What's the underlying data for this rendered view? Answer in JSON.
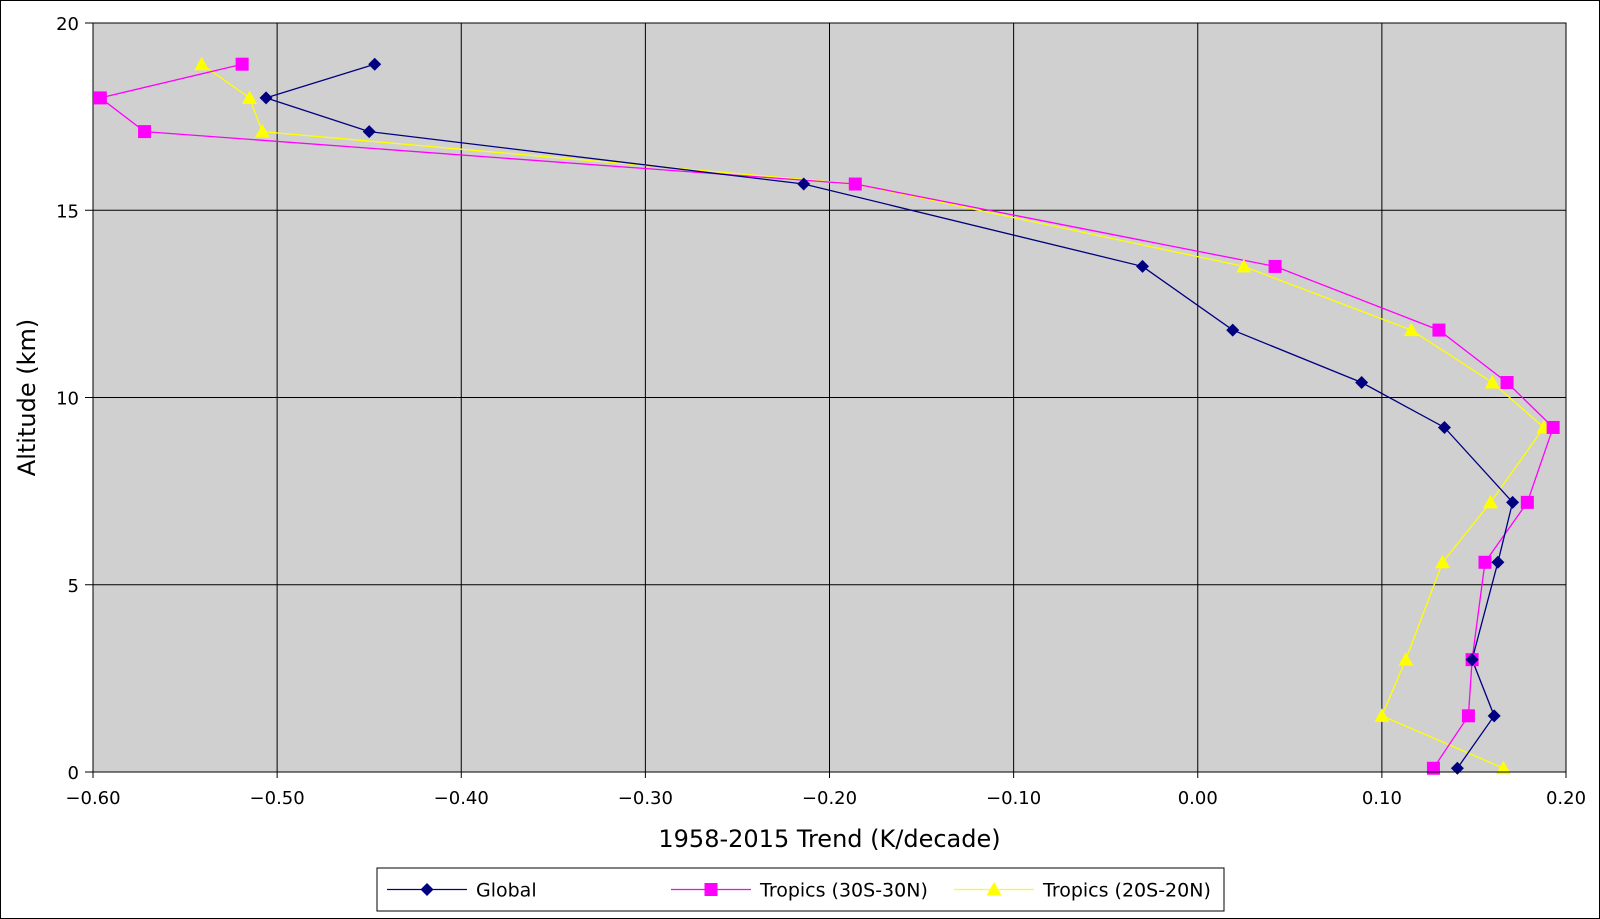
{
  "chart_data": {
    "type": "line",
    "title": "",
    "xlabel": "1958-2015 Trend (K/decade)",
    "ylabel": "Altitude (km)",
    "xlim": [
      -0.6,
      0.2
    ],
    "ylim": [
      0,
      20
    ],
    "x_ticks": [
      -0.6,
      -0.5,
      -0.4,
      -0.3,
      -0.2,
      -0.1,
      0.0,
      0.1,
      0.2
    ],
    "x_tick_labels": [
      "−0.60",
      "−0.50",
      "−0.40",
      "−0.30",
      "−0.20",
      "−0.10",
      "0.00",
      "0.10",
      "0.20"
    ],
    "y_ticks": [
      0,
      5,
      10,
      15,
      20
    ],
    "y_tick_labels": [
      "0",
      "5",
      "10",
      "15",
      "20"
    ],
    "grid": true,
    "plot_background": "#d0d0d0",
    "legend_position": "bottom",
    "series": [
      {
        "name": "Global",
        "color": "#000080",
        "marker": "diamond",
        "points": [
          {
            "x": 0.141,
            "y": 0.1
          },
          {
            "x": 0.161,
            "y": 1.5
          },
          {
            "x": 0.149,
            "y": 3.0
          },
          {
            "x": 0.163,
            "y": 5.6
          },
          {
            "x": 0.171,
            "y": 7.2
          },
          {
            "x": 0.134,
            "y": 9.2
          },
          {
            "x": 0.089,
            "y": 10.4
          },
          {
            "x": 0.019,
            "y": 11.8
          },
          {
            "x": -0.03,
            "y": 13.5
          },
          {
            "x": -0.214,
            "y": 15.7
          },
          {
            "x": -0.45,
            "y": 17.1
          },
          {
            "x": -0.506,
            "y": 18.0
          },
          {
            "x": -0.447,
            "y": 18.9
          }
        ]
      },
      {
        "name": "Tropics (30S-30N)",
        "color": "#ff00ff",
        "marker": "square",
        "points": [
          {
            "x": 0.128,
            "y": 0.1
          },
          {
            "x": 0.147,
            "y": 1.5
          },
          {
            "x": 0.149,
            "y": 3.0
          },
          {
            "x": 0.156,
            "y": 5.6
          },
          {
            "x": 0.179,
            "y": 7.2
          },
          {
            "x": 0.193,
            "y": 9.2
          },
          {
            "x": 0.168,
            "y": 10.4
          },
          {
            "x": 0.131,
            "y": 11.8
          },
          {
            "x": 0.042,
            "y": 13.5
          },
          {
            "x": -0.186,
            "y": 15.7
          },
          {
            "x": -0.572,
            "y": 17.1
          },
          {
            "x": -0.596,
            "y": 18.0
          },
          {
            "x": -0.519,
            "y": 18.9
          }
        ]
      },
      {
        "name": "Tropics (20S-20N)",
        "color": "#ffff00",
        "marker": "triangle",
        "points": [
          {
            "x": 0.166,
            "y": 0.1
          },
          {
            "x": 0.1,
            "y": 1.5
          },
          {
            "x": 0.113,
            "y": 3.0
          },
          {
            "x": 0.133,
            "y": 5.6
          },
          {
            "x": 0.159,
            "y": 7.2
          },
          {
            "x": 0.188,
            "y": 9.2
          },
          {
            "x": 0.16,
            "y": 10.4
          },
          {
            "x": 0.116,
            "y": 11.8
          },
          {
            "x": 0.025,
            "y": 13.5
          },
          {
            "x": -0.186,
            "y": 15.7
          },
          {
            "x": -0.508,
            "y": 17.1
          },
          {
            "x": -0.515,
            "y": 18.0
          },
          {
            "x": -0.541,
            "y": 18.9
          }
        ]
      }
    ]
  }
}
